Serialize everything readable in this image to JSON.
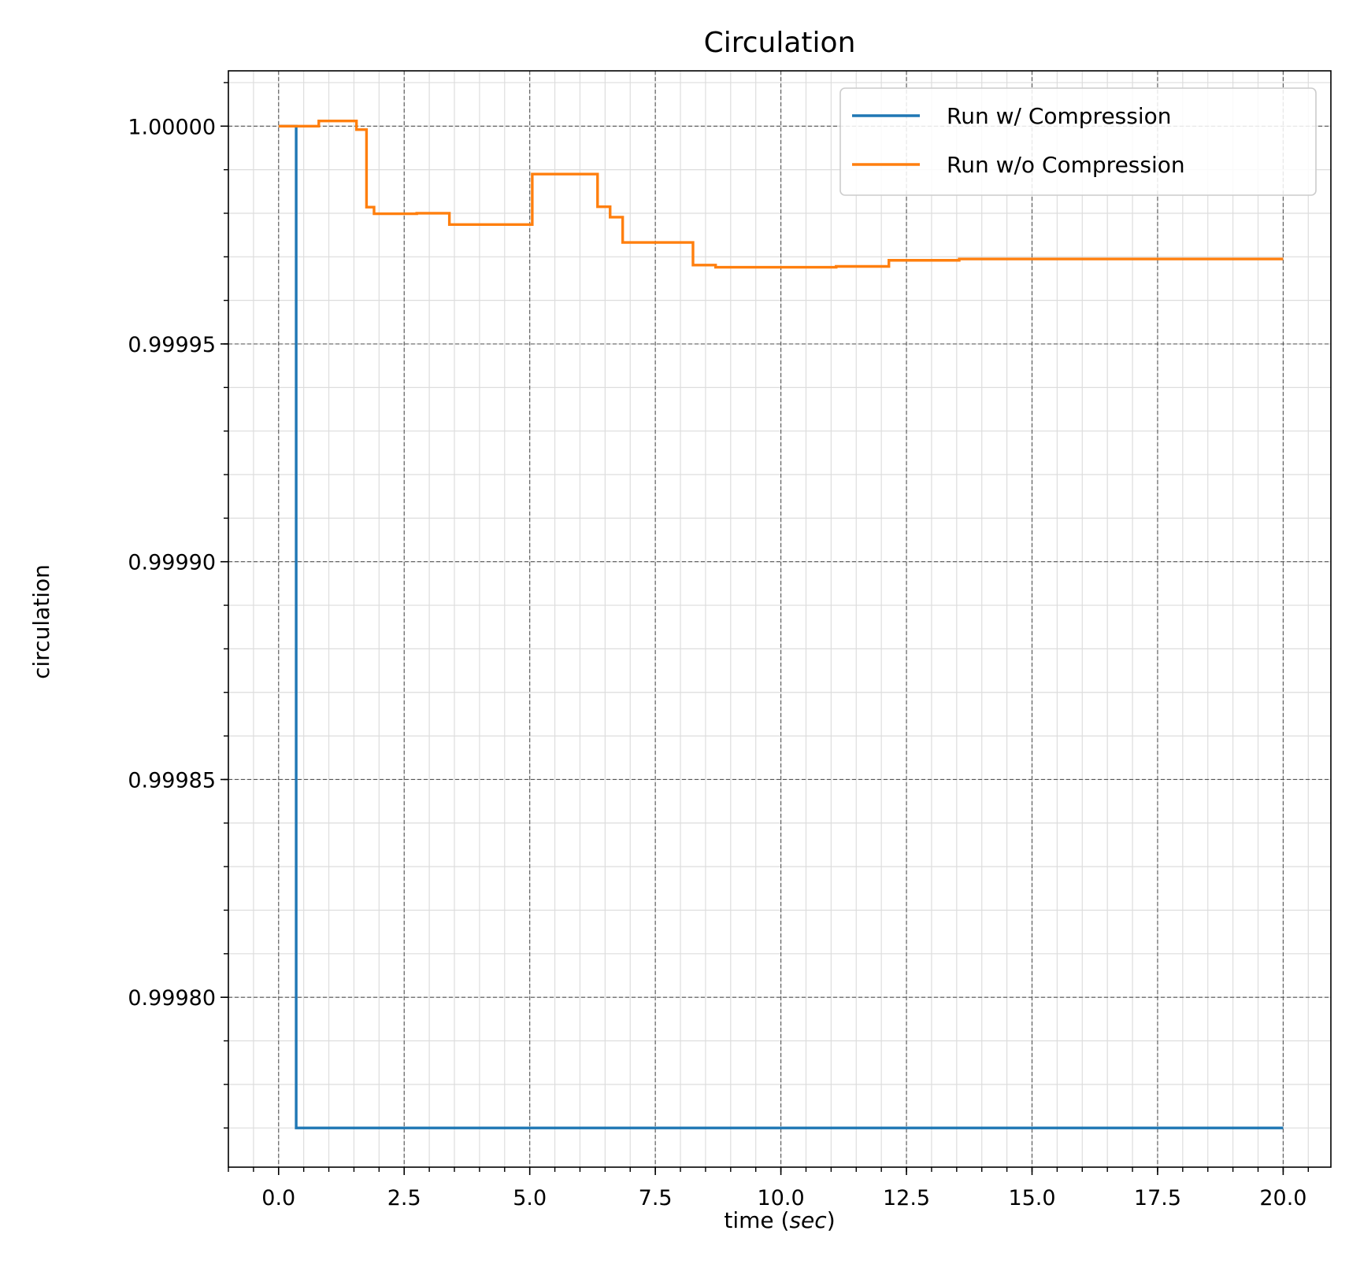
{
  "chart_data": {
    "type": "line",
    "title": "Circulation",
    "xlabel_main": "time (",
    "xlabel_unit": "sec",
    "xlabel_close": ")",
    "ylabel": "circulation",
    "xlim": [
      -1.0,
      20.95
    ],
    "ylim": [
      0.999761,
      1.0000127
    ],
    "x_ticks": [
      0.0,
      2.5,
      5.0,
      7.5,
      10.0,
      12.5,
      15.0,
      17.5,
      20.0
    ],
    "x_tick_labels": [
      "0.0",
      "2.5",
      "5.0",
      "7.5",
      "10.0",
      "12.5",
      "15.0",
      "17.5",
      "20.0"
    ],
    "y_ticks": [
      0.9998,
      0.99985,
      0.9999,
      0.99995,
      1.0
    ],
    "y_tick_labels": [
      "0.99980",
      "0.99985",
      "0.99990",
      "0.99995",
      "1.00000"
    ],
    "x_minor_step": 0.5,
    "y_minor_step": 1e-05,
    "grid": {
      "major": true,
      "minor": true
    },
    "legend_position": "top-right",
    "series": [
      {
        "name": "Run w/ Compression",
        "color": "#1f77b4",
        "x": [
          0.0,
          0.35,
          0.35,
          0.38,
          20.0
        ],
        "y": [
          1.0,
          1.0,
          0.99977,
          0.99977,
          0.99977
        ]
      },
      {
        "name": "Run w/o Compression",
        "color": "#ff7f0e",
        "x": [
          0.0,
          0.8,
          0.8,
          1.55,
          1.55,
          1.75,
          1.75,
          1.9,
          1.9,
          2.75,
          2.75,
          3.4,
          3.4,
          5.05,
          5.05,
          6.35,
          6.35,
          6.6,
          6.6,
          6.85,
          6.85,
          8.25,
          8.25,
          8.7,
          8.7,
          11.1,
          11.1,
          12.15,
          12.15,
          13.55,
          13.55,
          20.0
        ],
        "y": [
          1.0,
          1.0,
          1.0000012,
          1.0000012,
          0.9999992,
          0.9999992,
          0.9999814,
          0.9999814,
          0.9999799,
          0.9999799,
          0.99998,
          0.99998,
          0.9999774,
          0.9999774,
          0.999989,
          0.999989,
          0.9999815,
          0.9999815,
          0.9999791,
          0.9999791,
          0.9999733,
          0.9999733,
          0.9999681,
          0.9999681,
          0.9999676,
          0.9999676,
          0.9999678,
          0.9999678,
          0.9999692,
          0.9999692,
          0.9999695,
          0.9999695
        ]
      }
    ]
  }
}
